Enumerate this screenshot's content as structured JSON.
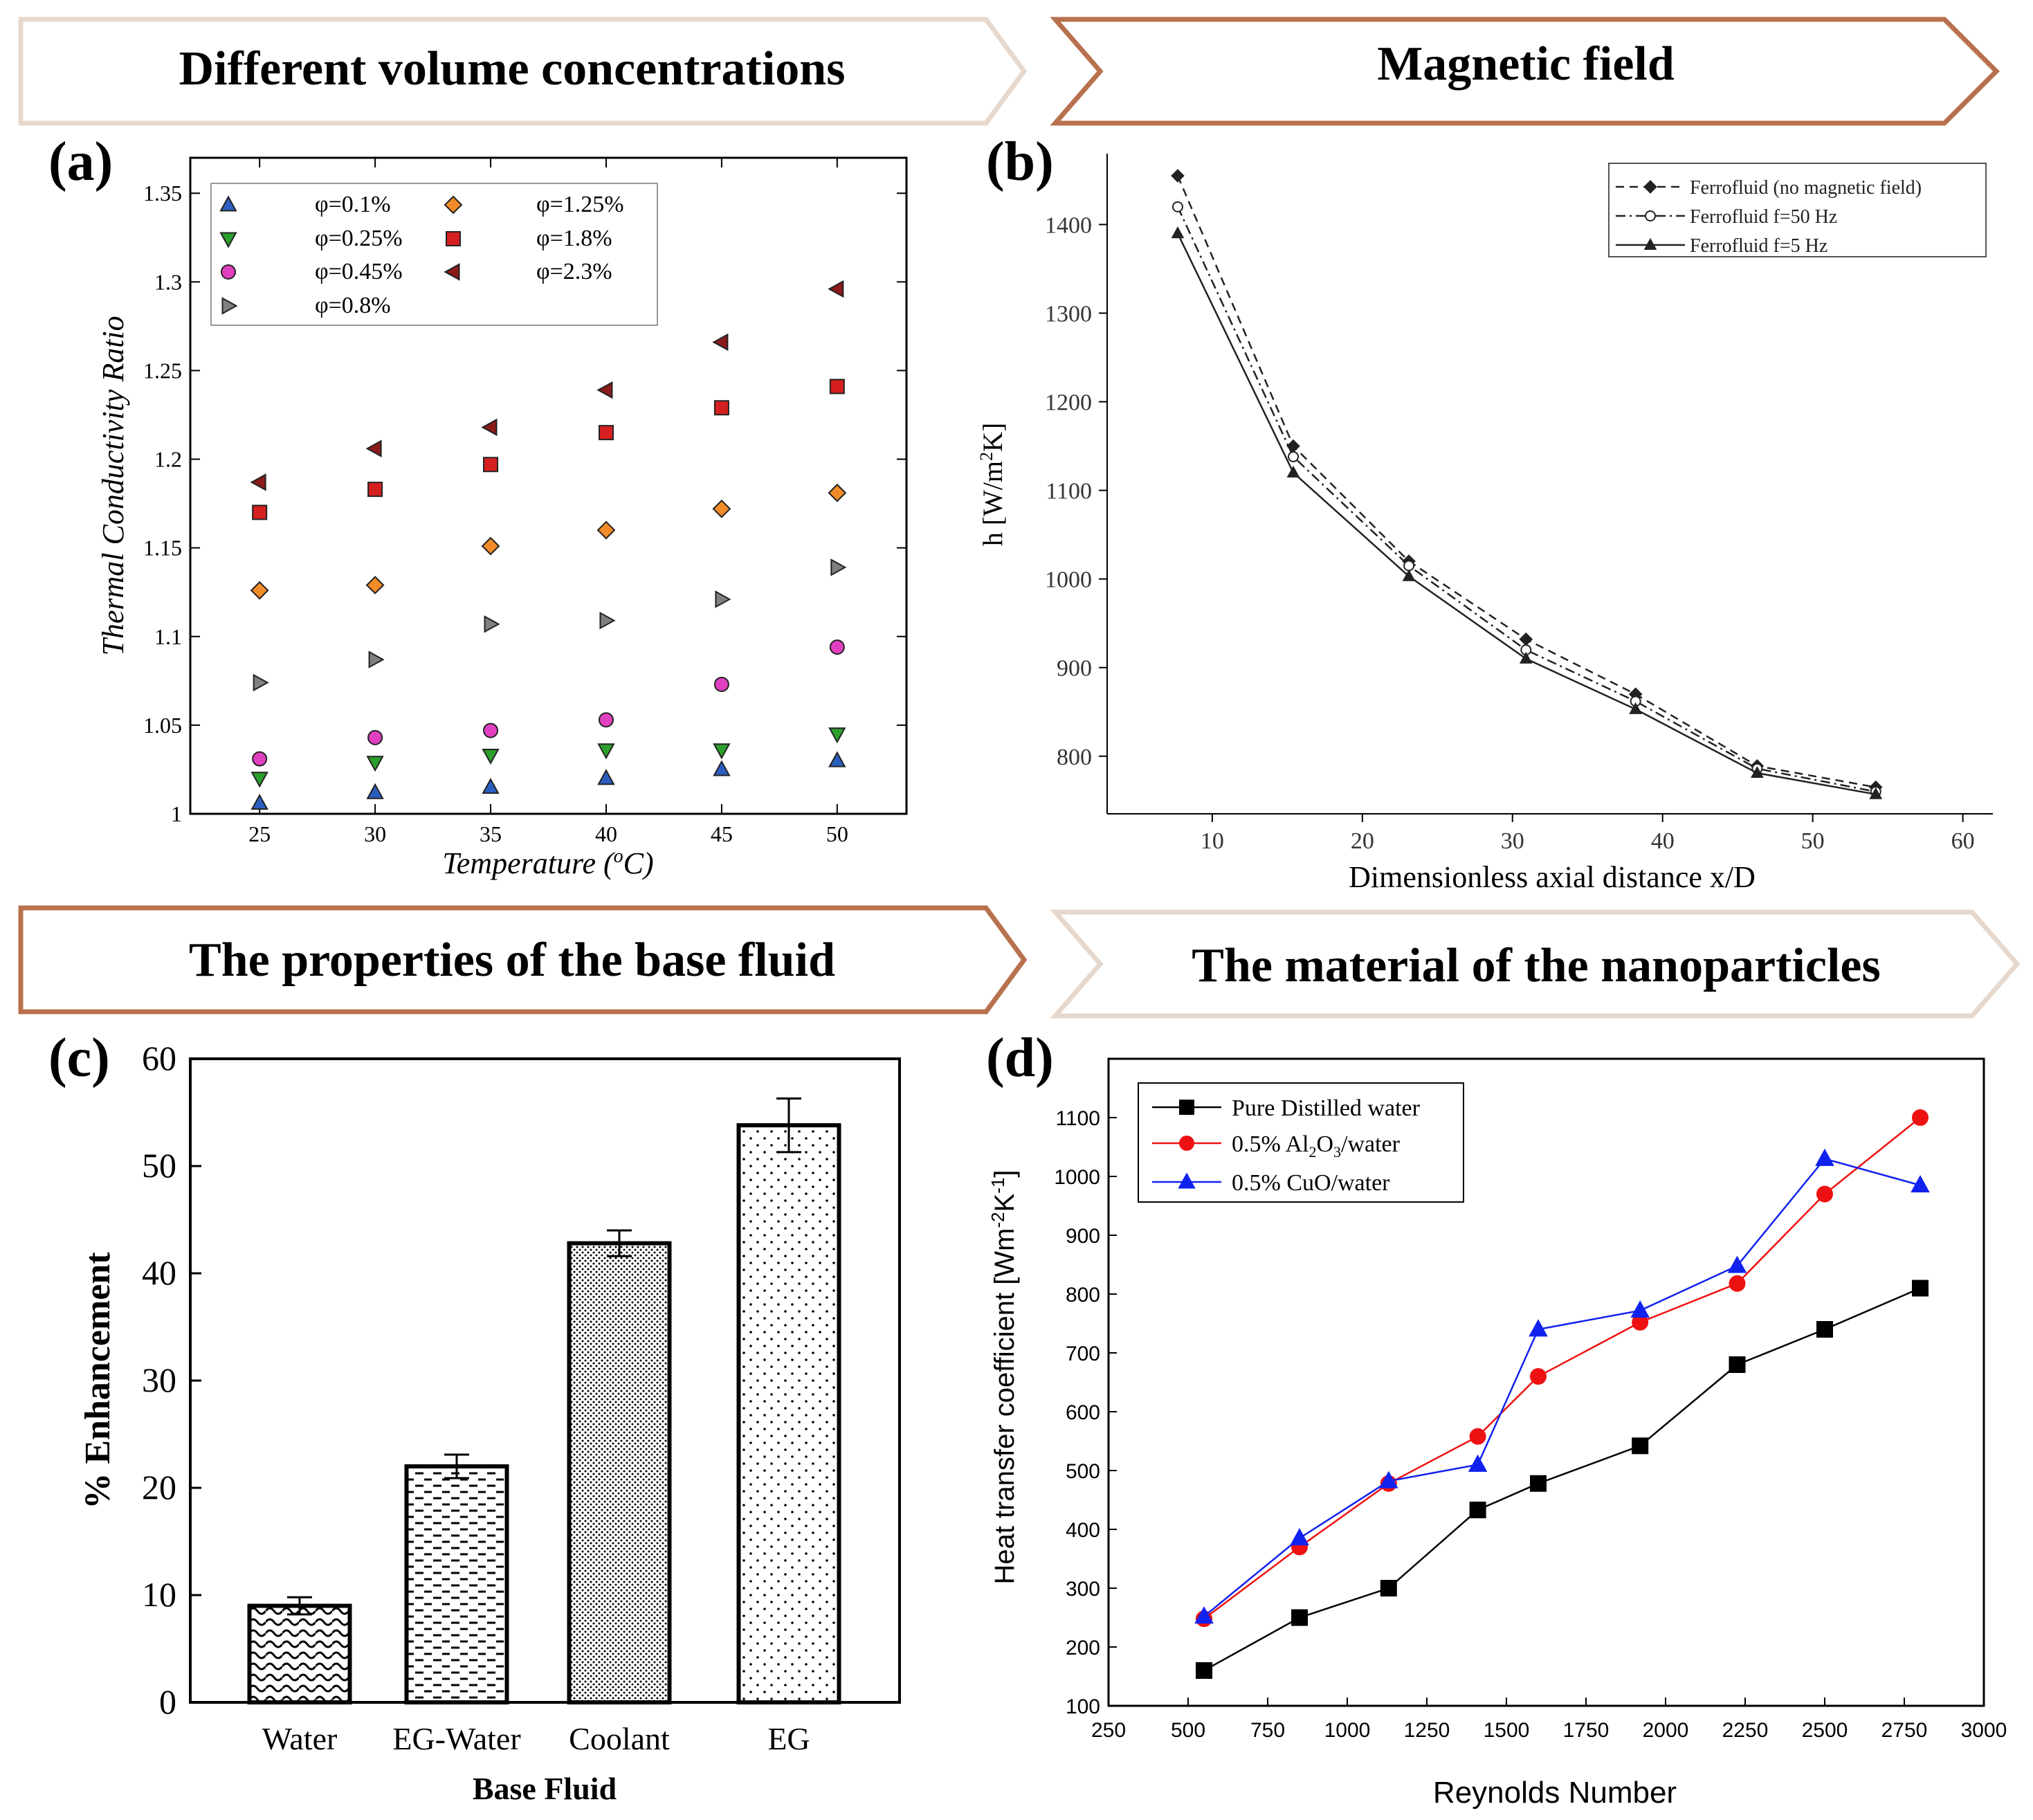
{
  "banners": {
    "top_left": "Different volume concentrations",
    "top_right": "Magnetic field",
    "bottom_left": "The properties of the base fluid",
    "bottom_right": "The material of the nanoparticles"
  },
  "colors": {
    "banner_light_border": "#e6d8cc",
    "banner_dark_border": "#b8714e",
    "phi_0_1": "#2b5fbf",
    "phi_0_25": "#2ca02c",
    "phi_0_45": "#e040c0",
    "phi_0_8": "#808080",
    "phi_1_25": "#f28c28",
    "phi_1_8": "#d62020",
    "phi_2_3": "#8b1a1a",
    "pure_water": "#000000",
    "al2o3": "#ee1111",
    "cuo": "#1122ee"
  },
  "chart_data": [
    {
      "panel": "(a)",
      "type": "scatter",
      "xlabel": "Temperature (°C)",
      "xlabel_prefix": "Temperature (",
      "xlabel_sup": "o",
      "xlabel_suffix": "C)",
      "ylabel": "Thermal Conductivity Ratio",
      "xlim": [
        22,
        53
      ],
      "ylim": [
        1.0,
        1.37
      ],
      "x_ticks": [
        "25",
        "30",
        "35",
        "40",
        "45",
        "50"
      ],
      "y_ticks": [
        "1",
        "1.05",
        "1.1",
        "1.15",
        "1.2",
        "1.25",
        "1.3",
        "1.35"
      ],
      "x": [
        25,
        30,
        35,
        40,
        45,
        50
      ],
      "series": [
        {
          "name": "φ=0.1%",
          "marker": "triangle-up",
          "values": [
            1.006,
            1.012,
            1.015,
            1.02,
            1.025,
            1.03
          ]
        },
        {
          "name": "φ=0.25%",
          "marker": "triangle-down",
          "values": [
            1.02,
            1.029,
            1.033,
            1.036,
            1.036,
            1.045
          ]
        },
        {
          "name": "φ=0.45%",
          "marker": "circle",
          "values": [
            1.031,
            1.043,
            1.047,
            1.053,
            1.073,
            1.094
          ]
        },
        {
          "name": "φ=0.8%",
          "marker": "triangle-right",
          "values": [
            1.074,
            1.087,
            1.107,
            1.109,
            1.121,
            1.139
          ]
        },
        {
          "name": "φ=1.25%",
          "marker": "diamond",
          "values": [
            1.126,
            1.129,
            1.151,
            1.16,
            1.172,
            1.181
          ]
        },
        {
          "name": "φ=1.8%",
          "marker": "square",
          "values": [
            1.17,
            1.183,
            1.197,
            1.215,
            1.229,
            1.241
          ]
        },
        {
          "name": "φ=2.3%",
          "marker": "triangle-left",
          "values": [
            1.187,
            1.206,
            1.218,
            1.239,
            1.266,
            1.296
          ]
        }
      ]
    },
    {
      "panel": "(b)",
      "type": "line",
      "xlabel": "Dimensionless axial distance x/D",
      "ylabel": "h [W/m²K]",
      "ylabel_main": "h [W/m",
      "ylabel_sup": "2",
      "ylabel_end": "K]",
      "xlim": [
        3,
        62
      ],
      "ylim": [
        735,
        1480
      ],
      "x_ticks": [
        "10",
        "20",
        "30",
        "40",
        "50",
        "60"
      ],
      "y_ticks": [
        "800",
        "900",
        "1000",
        "1100",
        "1200",
        "1300",
        "1400"
      ],
      "x": [
        7.7,
        15.4,
        23.1,
        30.9,
        38.2,
        46.3,
        54.2
      ],
      "series": [
        {
          "name": "Ferrofluid (no magnetic field)",
          "marker": "diamond-filled",
          "dash": "dashed",
          "values": [
            1455,
            1150,
            1020,
            932,
            870,
            789,
            765
          ]
        },
        {
          "name": "Ferrofluid f=50 Hz",
          "marker": "circle-open",
          "dash": "dashdot",
          "values": [
            1420,
            1138,
            1015,
            920,
            862,
            786,
            760
          ]
        },
        {
          "name": "Ferrofluid f=5 Hz",
          "marker": "triangle-filled",
          "dash": "solid",
          "values": [
            1390,
            1120,
            1003,
            910,
            853,
            781,
            757
          ]
        }
      ]
    },
    {
      "panel": "(c)",
      "type": "bar",
      "xlabel": "Base Fluid",
      "ylabel": "% Enhancement",
      "ylim": [
        0,
        60
      ],
      "y_ticks": [
        "0",
        "10",
        "20",
        "30",
        "40",
        "50",
        "60"
      ],
      "categories": [
        "Water",
        "EG-Water",
        "Coolant",
        "EG"
      ],
      "values": [
        9,
        22,
        42.8,
        53.8
      ],
      "errors": [
        0.8,
        1.1,
        1.2,
        2.5
      ],
      "patterns": [
        "waves",
        "dashes",
        "dense-dots",
        "sparse-dots"
      ]
    },
    {
      "panel": "(d)",
      "type": "line",
      "xlabel": "Reynolds Number",
      "ylabel": "Heat transfer coefficient [Wm-2K-1]",
      "ylabel_main": "Heat transfer coefficient [Wm",
      "ylabel_sup1": "-2",
      "ylabel_mid": "K",
      "ylabel_sup2": "-1",
      "ylabel_end": "]",
      "xlim": [
        250,
        3000
      ],
      "ylim": [
        100,
        1200
      ],
      "x_ticks": [
        "250",
        "500",
        "750",
        "1000",
        "1250",
        "1500",
        "1750",
        "2000",
        "2250",
        "2500",
        "2750",
        "3000"
      ],
      "y_ticks": [
        "100",
        "200",
        "300",
        "400",
        "500",
        "600",
        "700",
        "800",
        "900",
        "1000",
        "1100"
      ],
      "series": [
        {
          "name": "Pure Distilled water",
          "marker": "square",
          "x": [
            550,
            850,
            1130,
            1410,
            1600,
            1920,
            2225,
            2500,
            2800
          ],
          "values": [
            160,
            250,
            300,
            433,
            478,
            542,
            680,
            740,
            810
          ]
        },
        {
          "name": "0.5% Al2O3/water",
          "marker": "circle",
          "x": [
            550,
            850,
            1130,
            1410,
            1600,
            1920,
            2225,
            2500,
            2800
          ],
          "values": [
            248,
            370,
            478,
            558,
            660,
            752,
            818,
            970,
            1100
          ]
        },
        {
          "name": "0.5% CuO/water",
          "marker": "triangle-up",
          "x": [
            550,
            850,
            1130,
            1410,
            1600,
            1920,
            2225,
            2500,
            2800
          ],
          "values": [
            252,
            385,
            482,
            510,
            740,
            772,
            848,
            1030,
            985
          ]
        }
      ]
    }
  ],
  "legend_d": {
    "l1": "Pure Distilled water",
    "l2_pre": "0.5% Al",
    "l2_sub1": "2",
    "l2_mid": "O",
    "l2_sub2": "3",
    "l2_post": "/water",
    "l3": "0.5% CuO/water"
  },
  "panel_labels": {
    "a": "(a)",
    "b": "(b)",
    "c": "(c)",
    "d": "(d)"
  }
}
